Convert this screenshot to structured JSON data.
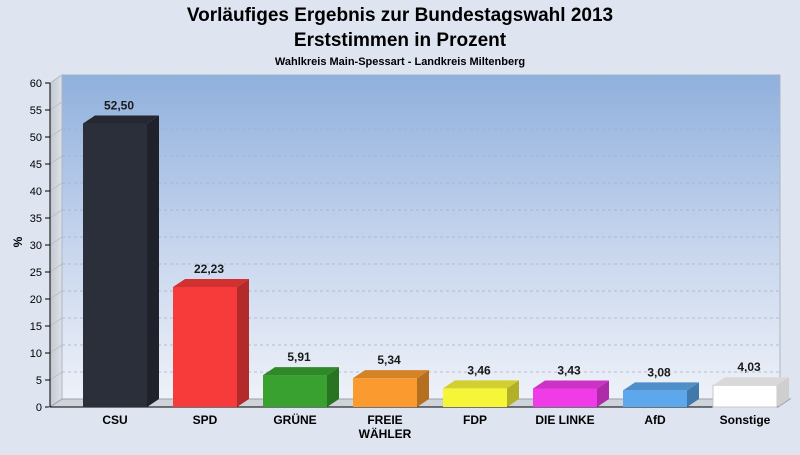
{
  "chart_data": {
    "type": "bar",
    "title": "Vorläufiges Ergebnis zur Bundestagswahl 2013",
    "subtitle": "Erststimmen in Prozent",
    "caption": "Wahlkreis Main-Spessart - Landkreis Miltenberg",
    "ylabel": "%",
    "ylim": [
      0,
      60
    ],
    "yticks": [
      0,
      5,
      10,
      15,
      20,
      25,
      30,
      35,
      40,
      45,
      50,
      55,
      60
    ],
    "grid": true,
    "categories": [
      "CSU",
      "SPD",
      "GRÜNE",
      "FREIE WÄHLER",
      "FDP",
      "DIE LINKE",
      "AfD",
      "Sonstige"
    ],
    "category_lines": [
      [
        "CSU"
      ],
      [
        "SPD"
      ],
      [
        "GRÜNE"
      ],
      [
        "FREIE",
        "WÄHLER"
      ],
      [
        "FDP"
      ],
      [
        "DIE LINKE"
      ],
      [
        "AfD"
      ],
      [
        "Sonstige"
      ]
    ],
    "values": [
      52.5,
      22.23,
      5.91,
      5.34,
      3.46,
      3.43,
      3.08,
      4.03
    ],
    "value_labels": [
      "52,50",
      "22,23",
      "5,91",
      "5,34",
      "3,46",
      "3,43",
      "3,08",
      "4,03"
    ],
    "colors": [
      "#2b2f3a",
      "#f73a3a",
      "#38a12f",
      "#fb9a2e",
      "#f7f538",
      "#f03ce8",
      "#5da8ec",
      "#ffffff"
    ]
  }
}
